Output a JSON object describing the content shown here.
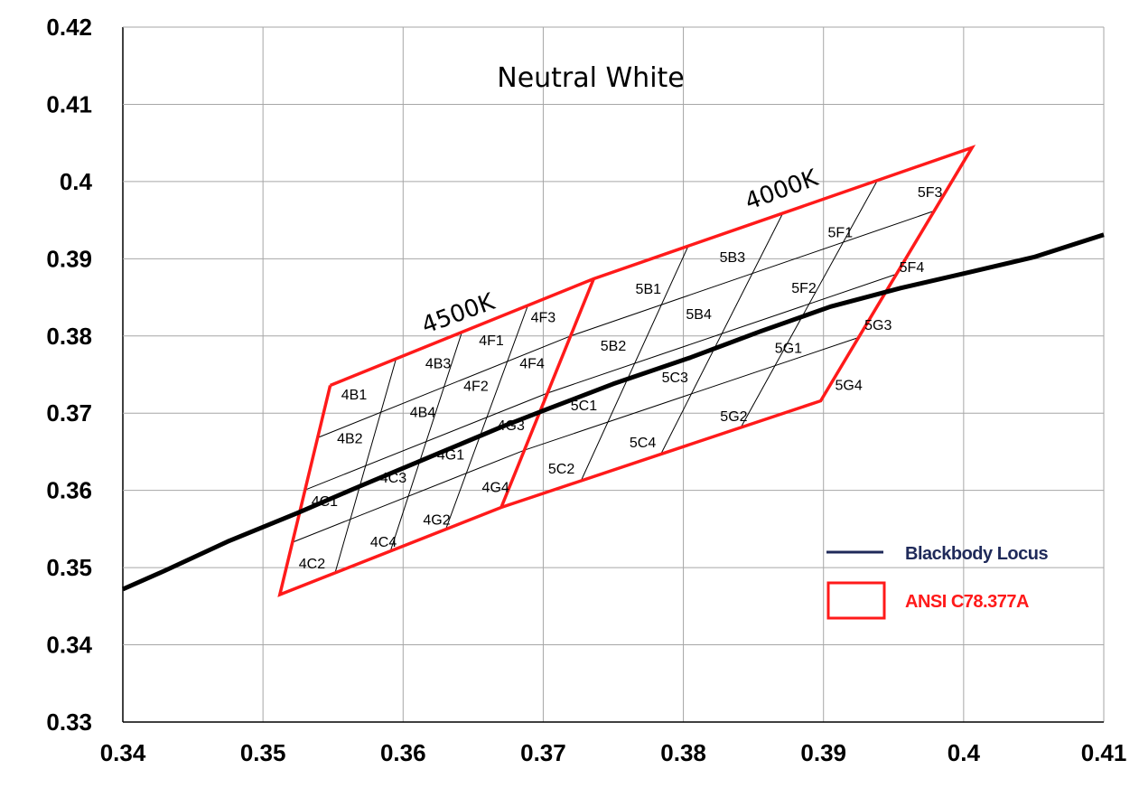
{
  "chart_data": {
    "type": "line",
    "title": "Neutral White",
    "xlim": [
      0.34,
      0.41
    ],
    "ylim": [
      0.33,
      0.42
    ],
    "x_ticks": [
      "0.34",
      "0.35",
      "0.36",
      "0.37",
      "0.38",
      "0.39",
      "0.4",
      "0.41"
    ],
    "y_ticks": [
      "0.33",
      "0.34",
      "0.35",
      "0.36",
      "0.37",
      "0.38",
      "0.39",
      "0.4",
      "0.41",
      "0.42"
    ],
    "grid": true,
    "legend_position": "bottom-right",
    "series": [
      {
        "name": "Blackbody Locus",
        "color": "#000000",
        "legend_color": "#1f2a5a",
        "points": [
          [
            0.34,
            0.3472
          ],
          [
            0.343,
            0.3496
          ],
          [
            0.3475,
            0.3534
          ],
          [
            0.3525,
            0.3571
          ],
          [
            0.357,
            0.3606
          ],
          [
            0.362,
            0.3644
          ],
          [
            0.367,
            0.3682
          ],
          [
            0.3704,
            0.3706
          ],
          [
            0.375,
            0.3738
          ],
          [
            0.3805,
            0.3772
          ],
          [
            0.3855,
            0.3806
          ],
          [
            0.3905,
            0.3838
          ],
          [
            0.3955,
            0.3862
          ],
          [
            0.4005,
            0.3883
          ],
          [
            0.405,
            0.3902
          ],
          [
            0.41,
            0.3931
          ]
        ]
      },
      {
        "name": "ANSI C78.377A",
        "color": "#ff1a1a",
        "outline": [
          [
            0.3548,
            0.3736
          ],
          [
            0.3736,
            0.3874
          ],
          [
            0.4006,
            0.4044
          ],
          [
            0.3898,
            0.3716
          ],
          [
            0.367,
            0.3578
          ],
          [
            0.3512,
            0.3465
          ],
          [
            0.3548,
            0.3736
          ]
        ],
        "divider": [
          [
            0.3736,
            0.3874
          ],
          [
            0.367,
            0.3578
          ]
        ]
      }
    ],
    "cct_labels": [
      "4500K",
      "4000K"
    ],
    "bins": [
      {
        "label": "4B1",
        "x": 0.3565,
        "y": 0.3725
      },
      {
        "label": "4B3",
        "x": 0.3625,
        "y": 0.3765
      },
      {
        "label": "4F1",
        "x": 0.3663,
        "y": 0.3795
      },
      {
        "label": "4F3",
        "x": 0.37,
        "y": 0.3825
      },
      {
        "label": "4B2",
        "x": 0.3562,
        "y": 0.3668
      },
      {
        "label": "4B4",
        "x": 0.3614,
        "y": 0.3702
      },
      {
        "label": "4F2",
        "x": 0.3652,
        "y": 0.3736
      },
      {
        "label": "4F4",
        "x": 0.3692,
        "y": 0.3765
      },
      {
        "label": "4C3",
        "x": 0.3593,
        "y": 0.3617
      },
      {
        "label": "4G1",
        "x": 0.3634,
        "y": 0.3647
      },
      {
        "label": "4G3",
        "x": 0.3677,
        "y": 0.3685
      },
      {
        "label": "4C1",
        "x": 0.3544,
        "y": 0.3587
      },
      {
        "label": "4C4",
        "x": 0.3586,
        "y": 0.3534
      },
      {
        "label": "4G2",
        "x": 0.3624,
        "y": 0.3563
      },
      {
        "label": "4G4",
        "x": 0.3666,
        "y": 0.3605
      },
      {
        "label": "4C2",
        "x": 0.3535,
        "y": 0.3506
      },
      {
        "label": "5B1",
        "x": 0.3775,
        "y": 0.3862
      },
      {
        "label": "5B2",
        "x": 0.375,
        "y": 0.3788
      },
      {
        "label": "5B3",
        "x": 0.3835,
        "y": 0.3903
      },
      {
        "label": "5B4",
        "x": 0.3811,
        "y": 0.3829
      },
      {
        "label": "5F1",
        "x": 0.3912,
        "y": 0.3935
      },
      {
        "label": "5F2",
        "x": 0.3886,
        "y": 0.3863
      },
      {
        "label": "5F3",
        "x": 0.3976,
        "y": 0.3987
      },
      {
        "label": "5F4",
        "x": 0.3963,
        "y": 0.389
      },
      {
        "label": "5C1",
        "x": 0.3729,
        "y": 0.3711
      },
      {
        "label": "5C2",
        "x": 0.3713,
        "y": 0.3629
      },
      {
        "label": "5C3",
        "x": 0.3794,
        "y": 0.3747
      },
      {
        "label": "5C4",
        "x": 0.3771,
        "y": 0.3663
      },
      {
        "label": "5G1",
        "x": 0.3875,
        "y": 0.3785
      },
      {
        "label": "5G2",
        "x": 0.3836,
        "y": 0.3697
      },
      {
        "label": "5G3",
        "x": 0.3939,
        "y": 0.3815
      },
      {
        "label": "5G4",
        "x": 0.3918,
        "y": 0.3737
      }
    ]
  }
}
